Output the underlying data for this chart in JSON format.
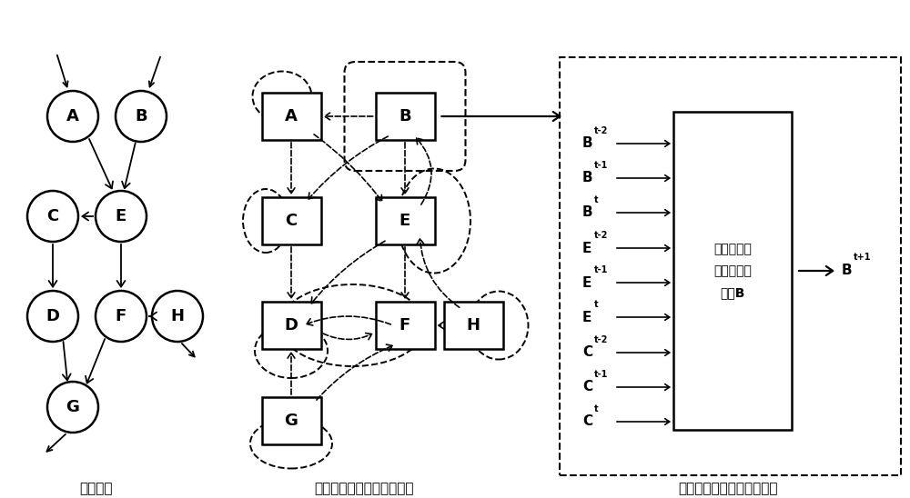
{
  "background": "#ffffff",
  "caption_left": "采样路网",
  "caption_mid": "网络的连接时空图卷积架构",
  "caption_right_line1": "交通网络的每个边缘关联的",
  "caption_right_line2": "时空图卷积模块",
  "box_label": "时空图卷积\n模块应用在\n道路B",
  "output_label_base": "B",
  "output_sup": "t+1",
  "input_labels": [
    [
      "B",
      "t-2"
    ],
    [
      "B",
      "t-1"
    ],
    [
      "B",
      "t"
    ],
    [
      "E",
      "t-2"
    ],
    [
      "E",
      "t-1"
    ],
    [
      "E",
      "t"
    ],
    [
      "C",
      "t-2"
    ],
    [
      "C",
      "t-1"
    ],
    [
      "C",
      "t"
    ]
  ]
}
